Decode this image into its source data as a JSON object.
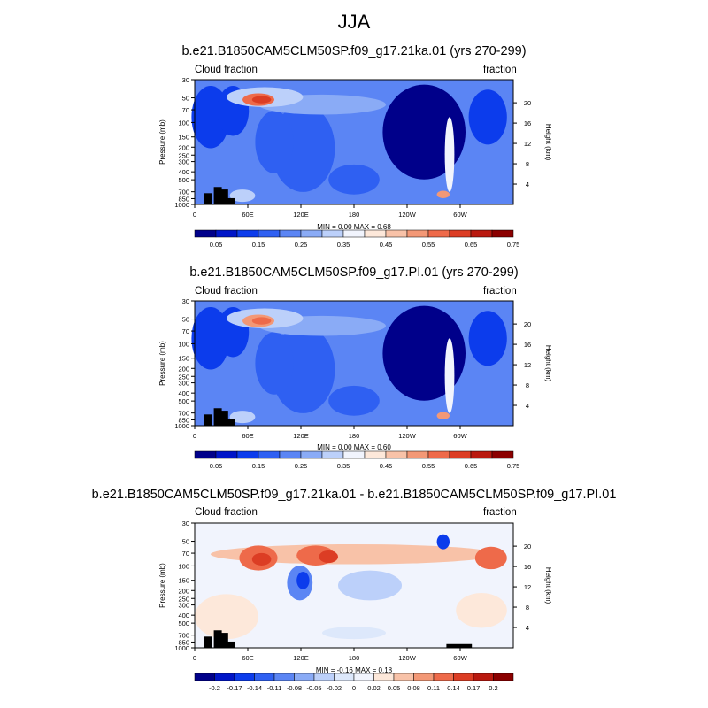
{
  "title": "JJA",
  "chart_data": [
    {
      "type": "heatmap",
      "title": "b.e21.B1850CAM5CLM50SP.f09_g17.21ka.01 (yrs 270-299)",
      "left_label": "Cloud fraction",
      "right_label": "fraction",
      "ylabel": "Pressure (mb)",
      "ylabel_right": "Height (km)",
      "xticks": [
        "0",
        "60E",
        "120E",
        "180",
        "120W",
        "60W"
      ],
      "yticks": [
        "1000",
        "850",
        "700",
        "500",
        "400",
        "300",
        "250",
        "200",
        "150",
        "100",
        "70",
        "50",
        "30"
      ],
      "height_ticks": [
        "20",
        "16",
        "12",
        "8",
        "4"
      ],
      "stats": "MIN =   0.00  MAX =   0.68",
      "colorbar": {
        "labels": [
          "0.05",
          "0.15",
          "0.25",
          "0.35",
          "0.45",
          "0.55",
          "0.65",
          "0.75"
        ],
        "colors": [
          "#00008a",
          "#0015c8",
          "#0c3cec",
          "#2f60f2",
          "#5b85f4",
          "#8aabf6",
          "#bcd0fa",
          "#f1f4fd",
          "#fde8da",
          "#f8c2a8",
          "#f39876",
          "#ee6a4a",
          "#dc3d24",
          "#b9190f",
          "#8b0000"
        ]
      }
    },
    {
      "type": "heatmap",
      "title": "b.e21.B1850CAM5CLM50SP.f09_g17.PI.01 (yrs 270-299)",
      "left_label": "Cloud fraction",
      "right_label": "fraction",
      "ylabel": "Pressure (mb)",
      "ylabel_right": "Height (km)",
      "xticks": [
        "0",
        "60E",
        "120E",
        "180",
        "120W",
        "60W"
      ],
      "yticks": [
        "1000",
        "850",
        "700",
        "500",
        "400",
        "300",
        "250",
        "200",
        "150",
        "100",
        "70",
        "50",
        "30"
      ],
      "height_ticks": [
        "20",
        "16",
        "12",
        "8",
        "4"
      ],
      "stats": "MIN =   0.00  MAX =   0.60",
      "colorbar": {
        "labels": [
          "0.05",
          "0.15",
          "0.25",
          "0.35",
          "0.45",
          "0.55",
          "0.65",
          "0.75"
        ],
        "colors": [
          "#00008a",
          "#0015c8",
          "#0c3cec",
          "#2f60f2",
          "#5b85f4",
          "#8aabf6",
          "#bcd0fa",
          "#f1f4fd",
          "#fde8da",
          "#f8c2a8",
          "#f39876",
          "#ee6a4a",
          "#dc3d24",
          "#b9190f",
          "#8b0000"
        ]
      }
    },
    {
      "type": "heatmap",
      "title": "b.e21.B1850CAM5CLM50SP.f09_g17.21ka.01 - b.e21.B1850CAM5CLM50SP.f09_g17.PI.01",
      "left_label": "Cloud fraction",
      "right_label": "fraction",
      "ylabel": "Pressure (mb)",
      "ylabel_right": "Height (km)",
      "xticks": [
        "0",
        "60E",
        "120E",
        "180",
        "120W",
        "60W"
      ],
      "yticks": [
        "1000",
        "850",
        "700",
        "500",
        "400",
        "300",
        "250",
        "200",
        "150",
        "100",
        "70",
        "50",
        "30"
      ],
      "height_ticks": [
        "20",
        "16",
        "12",
        "8",
        "4"
      ],
      "stats": "MIN =  -0.16  MAX =   0.18",
      "colorbar": {
        "labels": [
          "-0.2",
          "-0.17",
          "-0.14",
          "-0.11",
          "-0.08",
          "-0.05",
          "-0.02",
          "0",
          "0.02",
          "0.05",
          "0.08",
          "0.11",
          "0.14",
          "0.17",
          "0.2"
        ],
        "colors": [
          "#00008a",
          "#0015c8",
          "#0c3cec",
          "#2f60f2",
          "#5b85f4",
          "#8aabf6",
          "#bcd0fa",
          "#dde8fb",
          "#f1f4fd",
          "#fde8da",
          "#f8c2a8",
          "#f39876",
          "#ee6a4a",
          "#dc3d24",
          "#b9190f",
          "#8b0000"
        ]
      }
    }
  ]
}
